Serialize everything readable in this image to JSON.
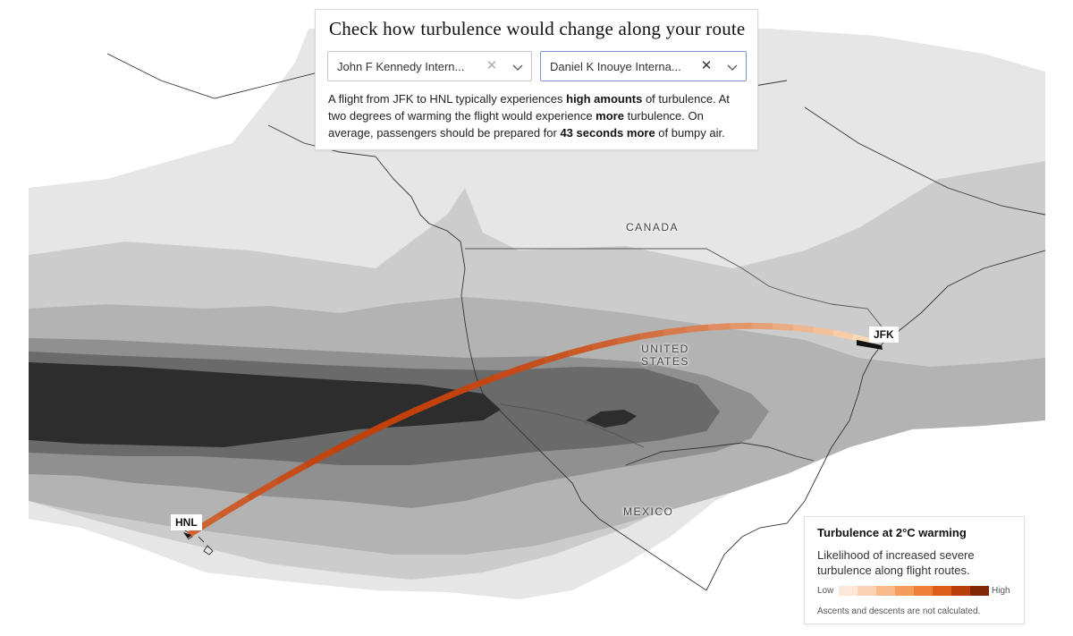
{
  "panel": {
    "title": "Check how turbulence would change along your route",
    "origin_select": {
      "value": "John F Kennedy Intern...",
      "clear_icon": "close-icon",
      "toggle_icon": "chevron-down-icon"
    },
    "destination_select": {
      "value": "Daniel K Inouye Interna...",
      "clear_icon": "close-icon",
      "toggle_icon": "chevron-down-icon"
    },
    "summary": {
      "t1": "A flight from JFK to HNL typically experiences ",
      "b1": "high amounts",
      "t2": " of turbulence. At two degrees of warming the flight would experience ",
      "b2": "more",
      "t3": " turbulence. On average, passengers should be prepared for ",
      "b3": "43 seconds more",
      "t4": " of bumpy air."
    }
  },
  "map": {
    "labels": {
      "canada": "CANADA",
      "united_states_1": "UNITED",
      "united_states_2": "STATES",
      "mexico": "MEXICO"
    },
    "airports": {
      "origin": "JFK",
      "destination": "HNL"
    },
    "colors": {
      "ocean": "#ffffff",
      "turbulence_bands": [
        "#e6e6e6",
        "#cccccc",
        "#b3b3b3",
        "#909090",
        "#6a6a6a",
        "#2d2d2d"
      ],
      "route_low": "#fbd9b6",
      "route_high": "#c1400c"
    }
  },
  "legend": {
    "title": "Turbulence at 2°C warming",
    "description": "Likelihood of increased severe turbulence along flight routes.",
    "low_label": "Low",
    "high_label": "High",
    "ramp": [
      "#fde7d9",
      "#fbd3b4",
      "#f9b98a",
      "#f59d5c",
      "#ee7f36",
      "#dd5e17",
      "#b83f0a",
      "#7f2704"
    ],
    "note": "Ascents and descents are not calculated."
  }
}
